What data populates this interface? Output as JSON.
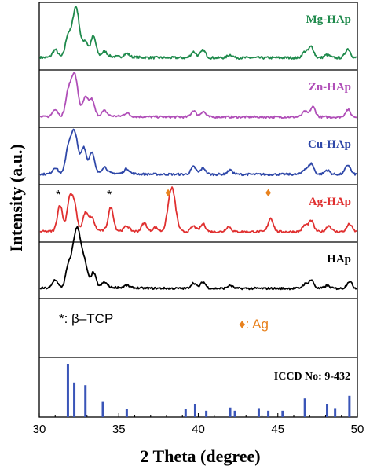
{
  "chart_data": {
    "type": "line",
    "xlabel": "2 Theta (degree)",
    "ylabel": "Intensity (a.u.)",
    "xlim": [
      30,
      50
    ],
    "xticks": [
      30,
      35,
      40,
      45,
      50
    ],
    "grid": false,
    "layout": "vertically stacked panels, each trace in its own panel, label in top-right of each panel",
    "series": [
      {
        "name": "Mg-HAp",
        "color": "#1f8a4c",
        "peaks": [
          [
            31.0,
            0.15
          ],
          [
            31.8,
            0.4
          ],
          [
            32.3,
            1.0
          ],
          [
            32.9,
            0.3
          ],
          [
            33.4,
            0.4
          ],
          [
            34.1,
            0.1
          ],
          [
            35.5,
            0.07
          ],
          [
            39.7,
            0.12
          ],
          [
            40.3,
            0.15
          ],
          [
            42.0,
            0.06
          ],
          [
            46.7,
            0.12
          ],
          [
            47.1,
            0.22
          ],
          [
            48.1,
            0.06
          ],
          [
            49.4,
            0.18
          ]
        ]
      },
      {
        "name": "Zn-HAp",
        "color": "#b04fb8",
        "peaks": [
          [
            31.0,
            0.18
          ],
          [
            31.8,
            0.45
          ],
          [
            32.2,
            1.0
          ],
          [
            32.9,
            0.42
          ],
          [
            33.3,
            0.38
          ],
          [
            34.1,
            0.12
          ],
          [
            35.5,
            0.08
          ],
          [
            39.7,
            0.15
          ],
          [
            40.3,
            0.13
          ],
          [
            46.7,
            0.13
          ],
          [
            47.2,
            0.24
          ],
          [
            49.4,
            0.17
          ]
        ]
      },
      {
        "name": "Cu-HAp",
        "color": "#2e47a8",
        "peaks": [
          [
            31.0,
            0.15
          ],
          [
            31.8,
            0.5
          ],
          [
            32.2,
            1.0
          ],
          [
            32.8,
            0.6
          ],
          [
            33.3,
            0.5
          ],
          [
            34.1,
            0.15
          ],
          [
            35.5,
            0.12
          ],
          [
            39.7,
            0.18
          ],
          [
            40.3,
            0.15
          ],
          [
            42.0,
            0.1
          ],
          [
            46.7,
            0.12
          ],
          [
            47.1,
            0.25
          ],
          [
            48.1,
            0.1
          ],
          [
            49.4,
            0.22
          ]
        ]
      },
      {
        "name": "Ag-HAp",
        "color": "#e03030",
        "peaks": [
          [
            31.3,
            0.62
          ],
          [
            31.9,
            0.72
          ],
          [
            32.2,
            0.6
          ],
          [
            32.9,
            0.42
          ],
          [
            33.3,
            0.3
          ],
          [
            34.5,
            0.55
          ],
          [
            35.5,
            0.12
          ],
          [
            36.6,
            0.2
          ],
          [
            37.3,
            0.1
          ],
          [
            38.1,
            0.1
          ],
          [
            38.35,
            1.0
          ],
          [
            39.7,
            0.13
          ],
          [
            40.3,
            0.18
          ],
          [
            41.9,
            0.12
          ],
          [
            44.55,
            0.32
          ],
          [
            46.7,
            0.15
          ],
          [
            47.1,
            0.25
          ],
          [
            48.2,
            0.14
          ],
          [
            49.5,
            0.18
          ]
        ]
      },
      {
        "name": "HAp",
        "color": "#000000",
        "peaks": [
          [
            31.0,
            0.2
          ],
          [
            31.8,
            0.4
          ],
          [
            32.2,
            0.8
          ],
          [
            32.5,
            1.0
          ],
          [
            32.9,
            0.42
          ],
          [
            33.4,
            0.35
          ],
          [
            34.1,
            0.12
          ],
          [
            35.5,
            0.06
          ],
          [
            39.7,
            0.13
          ],
          [
            40.3,
            0.15
          ],
          [
            42.0,
            0.07
          ],
          [
            46.7,
            0.1
          ],
          [
            47.1,
            0.2
          ],
          [
            48.1,
            0.07
          ],
          [
            49.5,
            0.17
          ]
        ]
      }
    ],
    "annotations": {
      "tcp_marker": "*",
      "tcp_positions": [
        31.2,
        34.4
      ],
      "ag_marker": "♦",
      "ag_positions": [
        38.1,
        44.4
      ],
      "ag_marker_color": "#e8821e",
      "legend_tcp": "*: β–TCP",
      "legend_ag": "♦: Ag"
    },
    "reference": {
      "label": "ICCD No: 9-432",
      "color": "#3a55b8",
      "lines": [
        [
          31.8,
          1.0
        ],
        [
          32.2,
          0.65
        ],
        [
          32.9,
          0.6
        ],
        [
          34.0,
          0.3
        ],
        [
          35.5,
          0.15
        ],
        [
          39.2,
          0.15
        ],
        [
          39.8,
          0.25
        ],
        [
          40.5,
          0.12
        ],
        [
          42.0,
          0.18
        ],
        [
          42.3,
          0.12
        ],
        [
          43.8,
          0.17
        ],
        [
          44.4,
          0.12
        ],
        [
          45.3,
          0.12
        ],
        [
          46.7,
          0.35
        ],
        [
          48.1,
          0.25
        ],
        [
          48.6,
          0.17
        ],
        [
          49.5,
          0.4
        ]
      ]
    }
  }
}
